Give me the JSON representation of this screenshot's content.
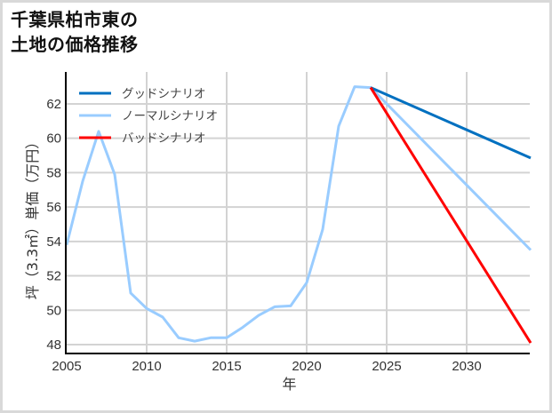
{
  "title": {
    "line1": "千葉県柏市東の",
    "line2": "土地の価格推移"
  },
  "colors": {
    "good": "#0070c0",
    "normal": "#99ccff",
    "bad": "#ff0000",
    "grid": "#d3d3d3",
    "axis": "#000000",
    "frame": "#d9d9d9"
  },
  "chart_data": {
    "type": "line",
    "title": "千葉県柏市東の土地の価格推移",
    "xlabel": "年",
    "ylabel": "坪（3.3㎡）単価（万円）",
    "xlim": [
      2005,
      2034
    ],
    "ylim": [
      47.5,
      63.5
    ],
    "x_ticks": [
      2005,
      2010,
      2015,
      2020,
      2025,
      2030
    ],
    "y_ticks": [
      48,
      50,
      52,
      54,
      56,
      58,
      60,
      62
    ],
    "grid": true,
    "legend_position": "upper left",
    "series": [
      {
        "name": "グッドシナリオ",
        "color": "#0070c0",
        "x": [
          2024,
          2034
        ],
        "values": [
          62.95,
          58.85
        ]
      },
      {
        "name": "ノーマルシナリオ",
        "color": "#99ccff",
        "x": [
          2005,
          2006,
          2007,
          2008,
          2009,
          2010,
          2011,
          2012,
          2013,
          2014,
          2015,
          2016,
          2017,
          2018,
          2019,
          2020,
          2021,
          2022,
          2023,
          2024,
          2034
        ],
        "values": [
          53.8,
          57.5,
          60.4,
          57.9,
          51.0,
          50.1,
          49.6,
          48.4,
          48.2,
          48.4,
          48.4,
          49.0,
          49.7,
          50.2,
          50.25,
          51.6,
          54.7,
          60.7,
          63.0,
          62.95,
          53.5
        ]
      },
      {
        "name": "バッドシナリオ",
        "color": "#ff0000",
        "x": [
          2024,
          2034
        ],
        "values": [
          62.95,
          48.1
        ]
      }
    ]
  }
}
